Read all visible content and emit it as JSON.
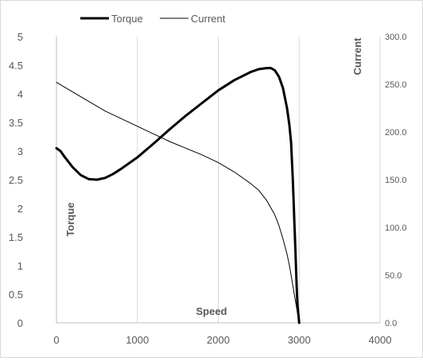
{
  "chart_data": {
    "type": "line",
    "title": "",
    "xlabel": "Speed",
    "ylabel_left": "Torque",
    "ylabel_right": "Current",
    "xlim": [
      0,
      4000
    ],
    "ylim_left": [
      0,
      5
    ],
    "ylim_right": [
      0,
      300
    ],
    "x_ticks": [
      "0",
      "1000",
      "2000",
      "3000",
      "4000"
    ],
    "y_left_ticks": [
      "0",
      "0.5",
      "1",
      "1.5",
      "2",
      "2.5",
      "3",
      "3.5",
      "4",
      "4.5",
      "5"
    ],
    "y_right_ticks": [
      "0.0",
      "50.0",
      "100.0",
      "150.0",
      "200.0",
      "250.0",
      "300.0"
    ],
    "grid": "vertical",
    "legend_position": "top",
    "series": [
      {
        "name": "Torque",
        "axis": "left",
        "color": "#000000",
        "line_style": "thick",
        "x": [
          0,
          50,
          100,
          200,
          300,
          400,
          500,
          600,
          700,
          800,
          1000,
          1200,
          1400,
          1600,
          1800,
          2000,
          2200,
          2400,
          2500,
          2600,
          2650,
          2700,
          2750,
          2800,
          2850,
          2880,
          2900,
          2910,
          2920,
          2930,
          2940,
          2950,
          2960,
          2970,
          2980,
          3000
        ],
        "y": [
          3.05,
          3.0,
          2.9,
          2.72,
          2.58,
          2.51,
          2.5,
          2.53,
          2.6,
          2.69,
          2.89,
          3.13,
          3.38,
          3.62,
          3.84,
          4.06,
          4.24,
          4.38,
          4.43,
          4.45,
          4.45,
          4.41,
          4.3,
          4.1,
          3.75,
          3.45,
          3.15,
          2.85,
          2.55,
          2.2,
          1.8,
          1.4,
          1.0,
          0.6,
          0.3,
          0.0
        ]
      },
      {
        "name": "Current",
        "axis": "right",
        "color": "#000000",
        "line_style": "thin",
        "x": [
          0,
          200,
          400,
          600,
          800,
          1000,
          1200,
          1400,
          1600,
          1800,
          2000,
          2200,
          2400,
          2500,
          2600,
          2700,
          2750,
          2800,
          2850,
          2880,
          2900,
          2920,
          2940,
          2960,
          2980,
          3000
        ],
        "y": [
          252,
          242,
          232,
          222,
          214,
          206,
          198,
          190,
          183,
          176,
          168,
          158,
          146,
          139,
          128,
          113,
          102,
          88,
          72,
          60,
          50,
          40,
          30,
          20,
          10,
          0
        ]
      }
    ]
  }
}
